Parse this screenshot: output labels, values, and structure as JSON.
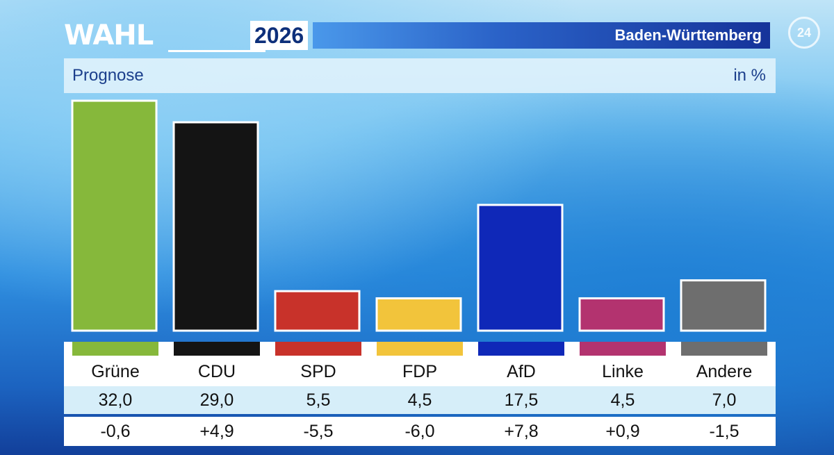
{
  "header": {
    "logo_word": "WAHL",
    "logo_year": "2026",
    "region": "Baden-Württemberg",
    "channel": "24"
  },
  "subheader": {
    "title": "Prognose",
    "unit": "in %"
  },
  "chart_data": {
    "type": "bar",
    "title": "Prognose",
    "ylabel": "in %",
    "ylim": [
      0,
      32
    ],
    "grid": false,
    "categories": [
      "Grüne",
      "CDU",
      "SPD",
      "FDP",
      "AfD",
      "Linke",
      "Andere"
    ],
    "values": [
      32.0,
      29.0,
      5.5,
      4.5,
      17.5,
      4.5,
      7.0
    ],
    "colors": [
      "#86b83b",
      "#141414",
      "#c8322a",
      "#f2c43b",
      "#0f28b8",
      "#b3336f",
      "#6e6e6e"
    ]
  },
  "table": {
    "parties": [
      {
        "name": "Grüne",
        "value": "32,0",
        "diff": "-0,6"
      },
      {
        "name": "CDU",
        "value": "29,0",
        "diff": "+4,9"
      },
      {
        "name": "SPD",
        "value": "5,5",
        "diff": "-5,5"
      },
      {
        "name": "FDP",
        "value": "4,5",
        "diff": "-6,0"
      },
      {
        "name": "AfD",
        "value": "17,5",
        "diff": "+7,8"
      },
      {
        "name": "Linke",
        "value": "4,5",
        "diff": "+0,9"
      },
      {
        "name": "Andere",
        "value": "7,0",
        "diff": "-1,5"
      }
    ]
  }
}
